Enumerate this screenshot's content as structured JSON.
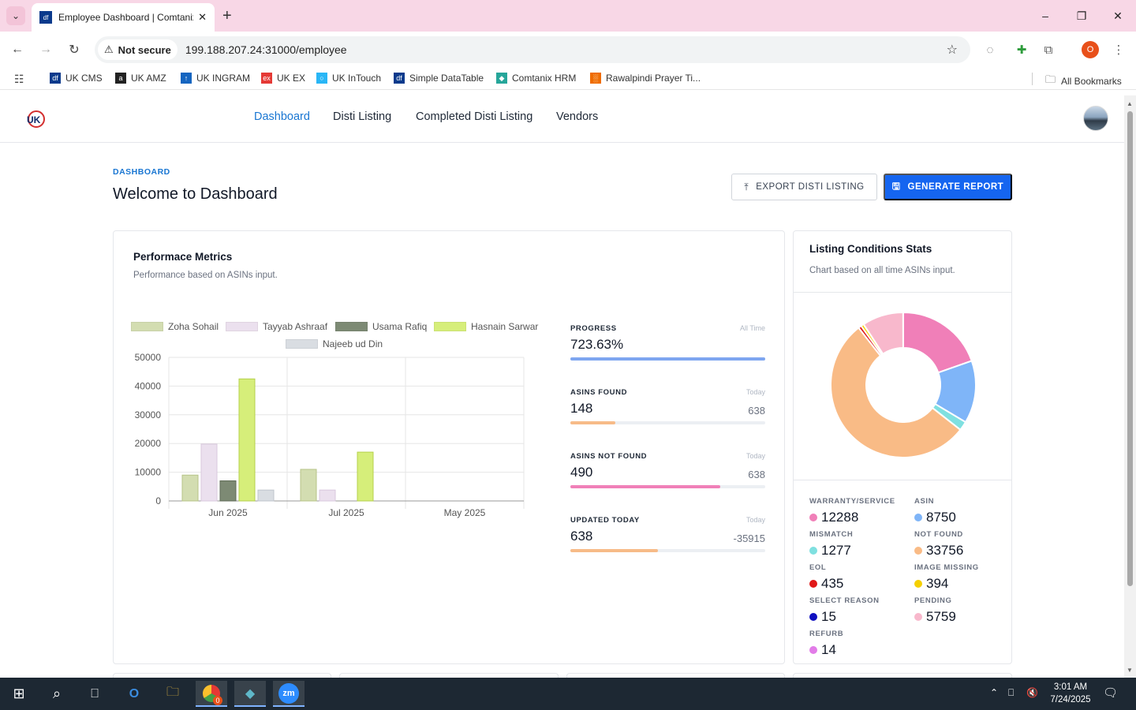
{
  "browser": {
    "tab_title": "Employee Dashboard | Comtanix",
    "tab_favicon": "df",
    "security_label": "Not secure",
    "url": "199.188.207.24:31000/employee",
    "profile_initial": "O",
    "bookmarks": [
      {
        "label": "UK CMS",
        "color": "#0a3a8c",
        "glyph": "df"
      },
      {
        "label": "UK AMZ",
        "color": "#222222",
        "glyph": "a"
      },
      {
        "label": "UK INGRAM",
        "color": "#1565c0",
        "glyph": "↑"
      },
      {
        "label": "UK EX",
        "color": "#e53935",
        "glyph": "ex"
      },
      {
        "label": "UK InTouch",
        "color": "#29b6f6",
        "glyph": "○"
      },
      {
        "label": "Simple DataTable",
        "color": "#0a3a8c",
        "glyph": "df"
      },
      {
        "label": "Comtanix HRM",
        "color": "#26a69a",
        "glyph": "◆"
      },
      {
        "label": "Rawalpindi Prayer Ti...",
        "color": "#ef6c00",
        "glyph": "░"
      }
    ],
    "all_bookmarks": "All Bookmarks"
  },
  "nav": {
    "links": [
      "Dashboard",
      "Disti Listing",
      "Completed Disti Listing",
      "Vendors"
    ],
    "active": "Dashboard"
  },
  "page": {
    "breadcrumb": "DASHBOARD",
    "title": "Welcome to Dashboard",
    "export_button": "EXPORT DISTI LISTING",
    "generate_button": "GENERATE REPORT"
  },
  "performance": {
    "title": "Performace Metrics",
    "subtitle": "Performance based on ASINs input."
  },
  "chart_data": {
    "type": "bar",
    "categories": [
      "Jun 2025",
      "Jul 2025",
      "May 2025"
    ],
    "ylim": [
      0,
      50000
    ],
    "yticks": [
      0,
      10000,
      20000,
      30000,
      40000,
      50000
    ],
    "series": [
      {
        "name": "Zoha Sohail",
        "color": "#d3ddb1",
        "stroke": "#b7c488",
        "values": [
          9000,
          11000,
          0
        ]
      },
      {
        "name": "Tayyab Ashraaf",
        "color": "#ebe0ee",
        "stroke": "#d8c8dd",
        "values": [
          19800,
          3800,
          0
        ]
      },
      {
        "name": "Usama Rafiq",
        "color": "#7d8a74",
        "stroke": "#5f6b57",
        "values": [
          7000,
          0,
          0
        ]
      },
      {
        "name": "Hasnain Sarwar",
        "color": "#d6ee7a",
        "stroke": "#b6d04c",
        "values": [
          42500,
          17000,
          0
        ]
      },
      {
        "name": "Najeeb ud Din",
        "color": "#d9dde2",
        "stroke": "#bfc5cc",
        "values": [
          3800,
          0,
          0
        ]
      }
    ]
  },
  "metrics": [
    {
      "label": "PROGRESS",
      "period": "All Time",
      "value": "723.63%",
      "target": "",
      "fill_pct": 100,
      "color": "#7ea6f0"
    },
    {
      "label": "ASINS FOUND",
      "period": "Today",
      "value": "148",
      "target": "638",
      "fill_pct": 23,
      "color": "#f7bb88"
    },
    {
      "label": "ASINS NOT FOUND",
      "period": "Today",
      "value": "490",
      "target": "638",
      "fill_pct": 77,
      "color": "#f080b8"
    },
    {
      "label": "UPDATED TODAY",
      "period": "Today",
      "value": "638",
      "target": "-35915",
      "fill_pct": 45,
      "color": "#f7bb88"
    }
  ],
  "listing": {
    "title": "Listing Conditions Stats",
    "subtitle": "Chart based on all time ASINs input.",
    "stats": [
      {
        "label": "WARRANTY/SERVICE",
        "value": "12288",
        "color": "#f07fb8"
      },
      {
        "label": "ASIN",
        "value": "8750",
        "color": "#7fb5f8"
      },
      {
        "label": "MISMATCH",
        "value": "1277",
        "color": "#7fe0e0"
      },
      {
        "label": "NOT FOUND",
        "value": "33756",
        "color": "#f9bb86"
      },
      {
        "label": "EOL",
        "value": "435",
        "color": "#e01818"
      },
      {
        "label": "IMAGE MISSING",
        "value": "394",
        "color": "#f5d000"
      },
      {
        "label": "SELECT REASON",
        "value": "15",
        "color": "#1010c0"
      },
      {
        "label": "PENDING",
        "value": "5759",
        "color": "#f8b8cc"
      },
      {
        "label": "REFURB",
        "value": "14",
        "color": "#e27ce8"
      }
    ]
  },
  "taskbar": {
    "time": "3:01 AM",
    "date": "7/24/2025",
    "chrome_badge": "0"
  }
}
